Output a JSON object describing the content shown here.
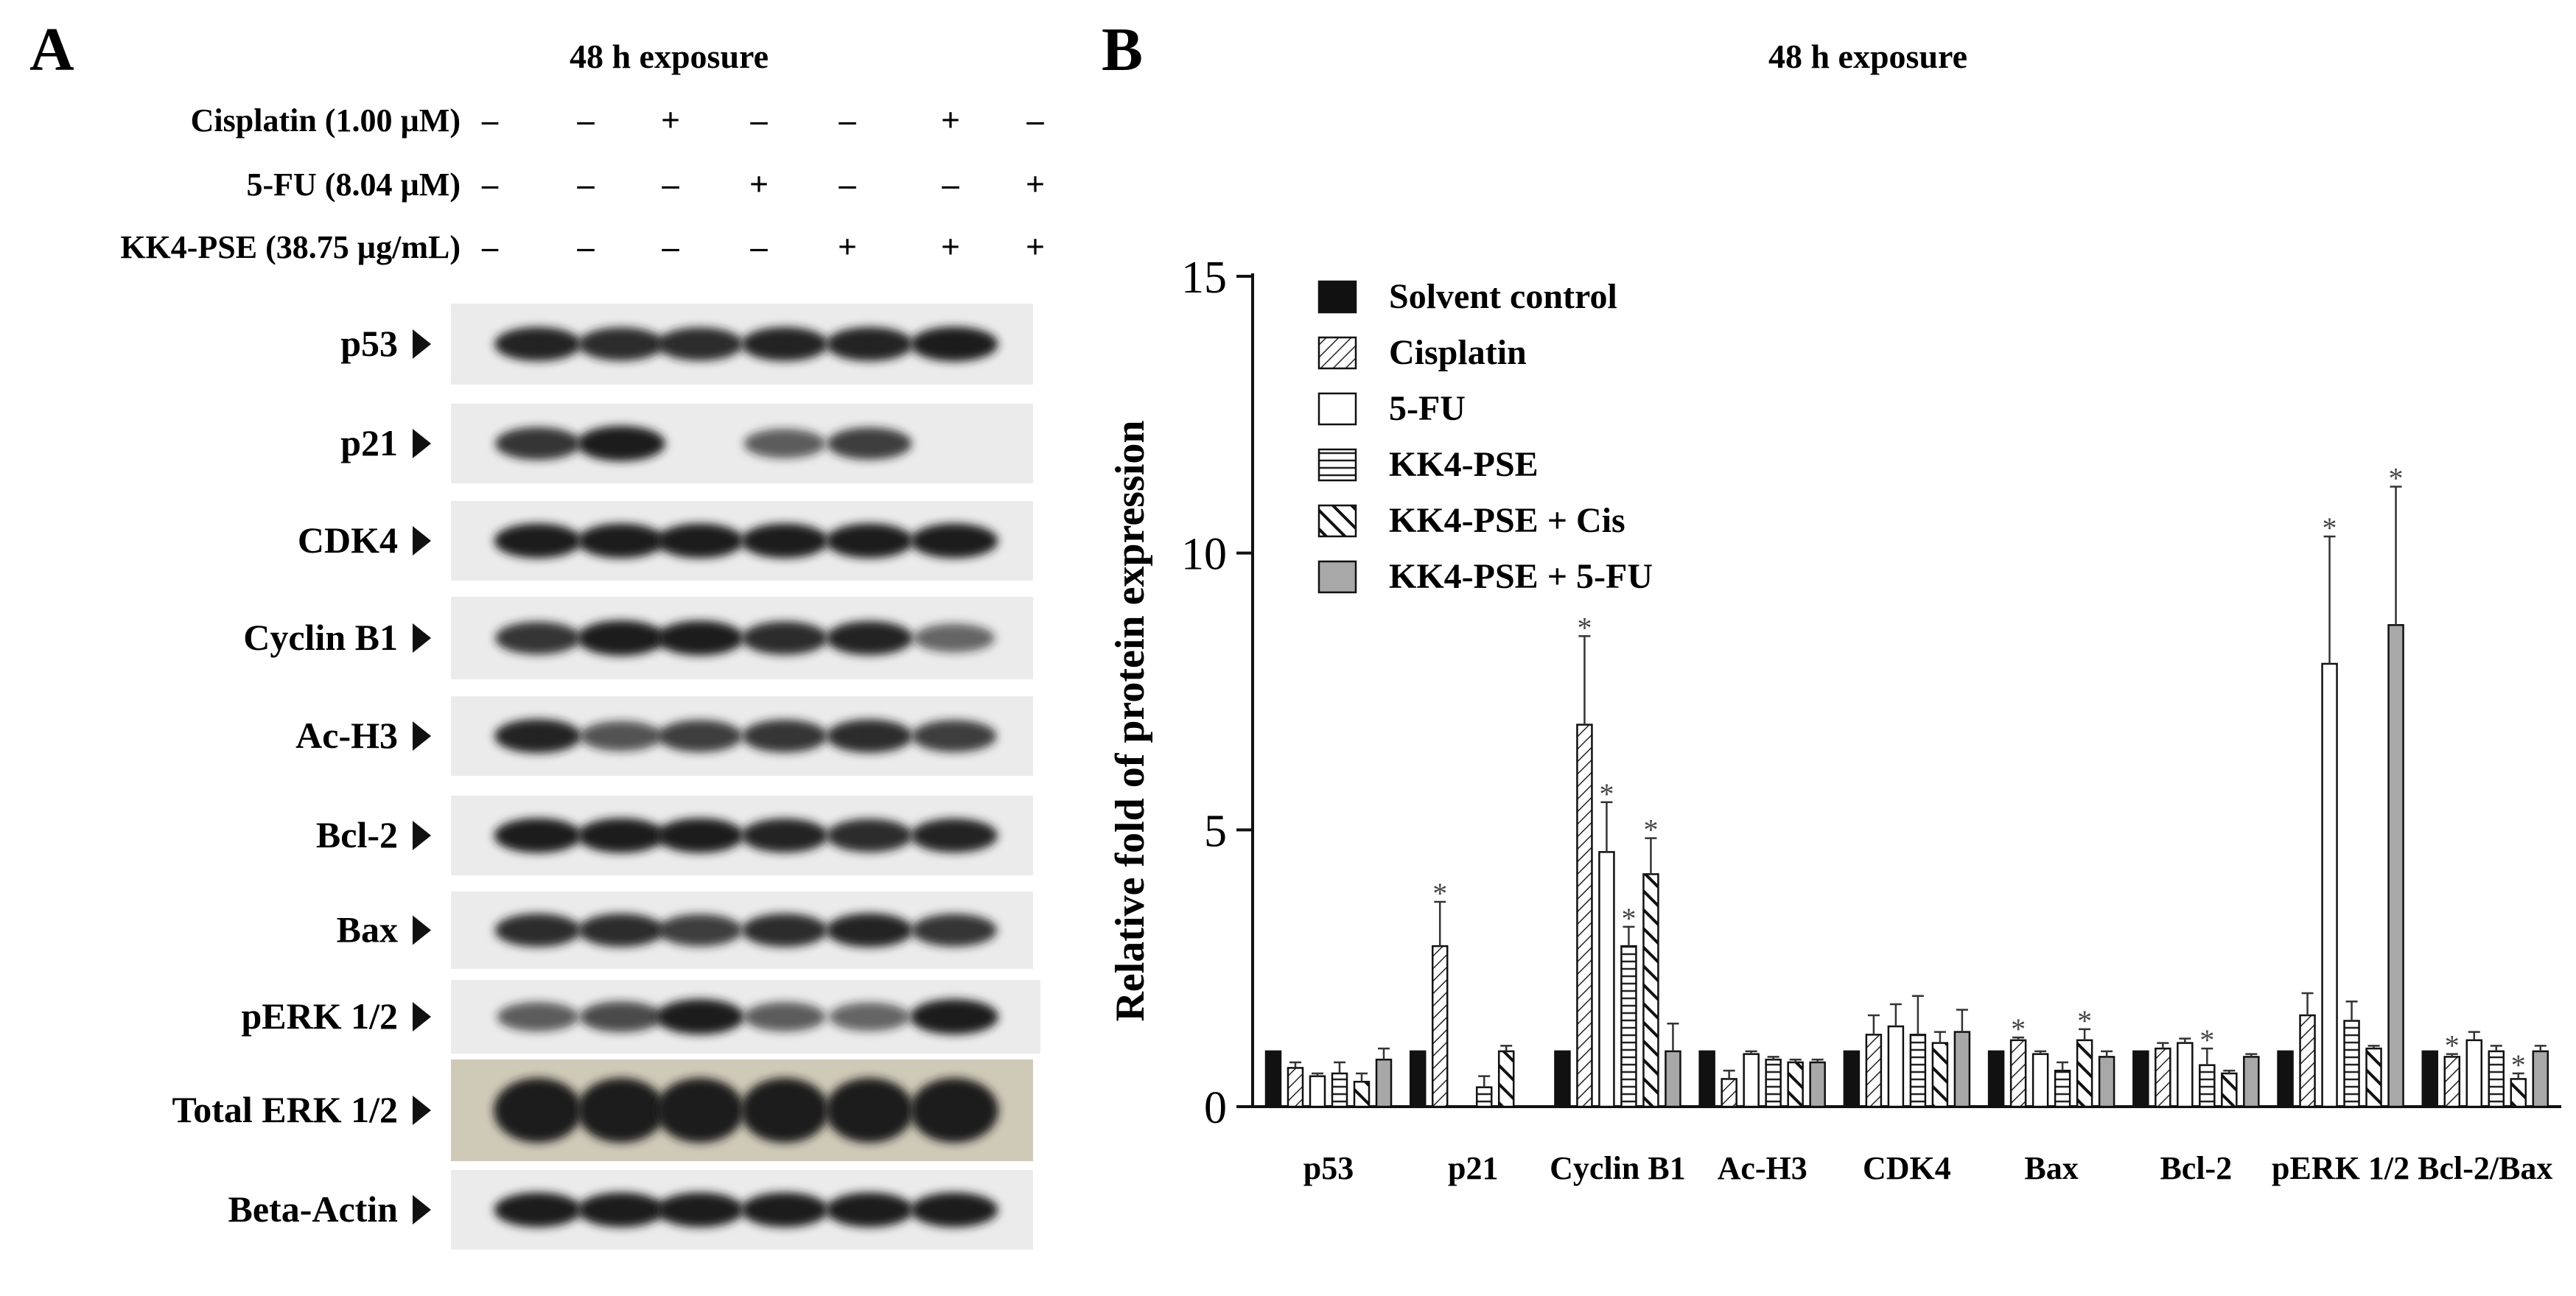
{
  "panel_a": {
    "letter": "A",
    "title": "48 h exposure",
    "treatments": [
      {
        "label": "Cisplatin (1.00 µM)",
        "marks": [
          "–",
          "+",
          "–",
          "–",
          "+",
          "–"
        ]
      },
      {
        "label": "5-FU (8.04 µM)",
        "marks": [
          "–",
          "–",
          "+",
          "–",
          "–",
          "+"
        ]
      },
      {
        "label": "KK4-PSE (38.75 µg/mL)",
        "marks": [
          "–",
          "–",
          "–",
          "+",
          "+",
          "+"
        ]
      }
    ],
    "blots": [
      {
        "label": "p53",
        "intensity": [
          0.9,
          0.85,
          0.85,
          0.9,
          0.9,
          0.95
        ]
      },
      {
        "label": "p21",
        "intensity": [
          0.8,
          1.0,
          0.0,
          0.55,
          0.75,
          0.0
        ]
      },
      {
        "label": "CDK4",
        "intensity": [
          0.95,
          0.95,
          0.95,
          0.95,
          0.95,
          0.95
        ]
      },
      {
        "label": "Cyclin B1",
        "intensity": [
          0.8,
          1.0,
          0.95,
          0.85,
          0.9,
          0.5
        ]
      },
      {
        "label": "Ac-H3",
        "intensity": [
          0.9,
          0.6,
          0.75,
          0.8,
          0.85,
          0.75
        ]
      },
      {
        "label": "Bcl-2",
        "intensity": [
          0.95,
          0.95,
          0.95,
          0.9,
          0.85,
          0.9
        ]
      },
      {
        "label": "Bax",
        "intensity": [
          0.85,
          0.85,
          0.75,
          0.85,
          0.9,
          0.8
        ]
      },
      {
        "label": "pERK 1/2",
        "intensity": [
          0.55,
          0.65,
          1.0,
          0.55,
          0.5,
          1.0
        ]
      },
      {
        "label": "Total ERK 1/2",
        "intensity": [
          1.0,
          1.0,
          1.0,
          1.0,
          1.0,
          1.0
        ]
      },
      {
        "label": "Beta-Actin",
        "intensity": [
          0.95,
          0.95,
          0.95,
          0.95,
          0.95,
          0.95
        ]
      }
    ]
  },
  "panel_b": {
    "letter": "B",
    "title": "48 h exposure"
  },
  "chart_data": {
    "type": "bar",
    "title": "48 h exposure",
    "xlabel": "",
    "ylabel": "Relative fold of protein expression",
    "ylim": [
      0,
      15
    ],
    "yticks": [
      "0",
      "5",
      "10",
      "15"
    ],
    "categories": [
      "p53",
      "p21",
      "Cyclin B1",
      "Ac-H3",
      "CDK4",
      "Bax",
      "Bcl-2",
      "pERK 1/2",
      "Bcl-2/Bax"
    ],
    "legend_position": "top-left",
    "series": [
      {
        "name": "Solvent control",
        "pattern": "solid-black",
        "values": [
          1,
          1,
          1,
          1,
          1,
          1,
          1,
          1,
          1
        ],
        "errors": [
          0,
          0,
          0,
          0,
          0,
          0,
          0,
          0,
          0
        ],
        "significant": [
          false,
          false,
          false,
          false,
          false,
          false,
          false,
          false,
          false
        ]
      },
      {
        "name": "Cisplatin",
        "pattern": "diagonal-thin",
        "values": [
          0.7,
          2.9,
          6.9,
          0.5,
          1.3,
          1.2,
          1.05,
          1.65,
          0.9
        ],
        "errors": [
          0.1,
          0.8,
          1.6,
          0.15,
          0.35,
          0.05,
          0.1,
          0.4,
          0.05
        ],
        "significant": [
          false,
          true,
          true,
          false,
          false,
          true,
          false,
          false,
          true
        ]
      },
      {
        "name": "5-FU",
        "pattern": "white",
        "values": [
          0.55,
          0.0,
          4.6,
          0.95,
          1.45,
          0.95,
          1.15,
          8.0,
          1.2
        ],
        "errors": [
          0.05,
          0,
          0.9,
          0.05,
          0.4,
          0.05,
          0.08,
          2.3,
          0.15
        ],
        "significant": [
          false,
          false,
          true,
          false,
          false,
          false,
          false,
          true,
          false
        ]
      },
      {
        "name": "KK4-PSE",
        "pattern": "horizontal-lines",
        "values": [
          0.6,
          0.35,
          2.9,
          0.85,
          1.3,
          0.65,
          0.75,
          1.55,
          1.0
        ],
        "errors": [
          0.2,
          0.2,
          0.35,
          0.05,
          0.7,
          0.15,
          0.3,
          0.35,
          0.1
        ],
        "significant": [
          false,
          false,
          true,
          false,
          false,
          false,
          true,
          false,
          false
        ]
      },
      {
        "name": "KK4-PSE + Cis",
        "pattern": "diagonal-thick",
        "values": [
          0.45,
          1.0,
          4.2,
          0.8,
          1.15,
          1.2,
          0.6,
          1.05,
          0.5
        ],
        "errors": [
          0.15,
          0.1,
          0.65,
          0.05,
          0.2,
          0.2,
          0.05,
          0.05,
          0.1
        ],
        "significant": [
          false,
          false,
          true,
          false,
          false,
          true,
          false,
          false,
          true
        ]
      },
      {
        "name": "KK4-PSE + 5-FU",
        "pattern": "solid-gray",
        "values": [
          0.85,
          0.0,
          1.0,
          0.8,
          1.35,
          0.9,
          0.9,
          8.7,
          1.0
        ],
        "errors": [
          0.2,
          0,
          0.5,
          0.05,
          0.4,
          0.1,
          0.05,
          2.5,
          0.1
        ],
        "significant": [
          false,
          false,
          false,
          false,
          false,
          false,
          false,
          true,
          false
        ]
      }
    ],
    "significance_marker": "*"
  },
  "colors": {
    "black": "#111111",
    "gray": "#a8a8a8",
    "blot_bg": "#ebebeb",
    "band": "#1c1c1c"
  }
}
